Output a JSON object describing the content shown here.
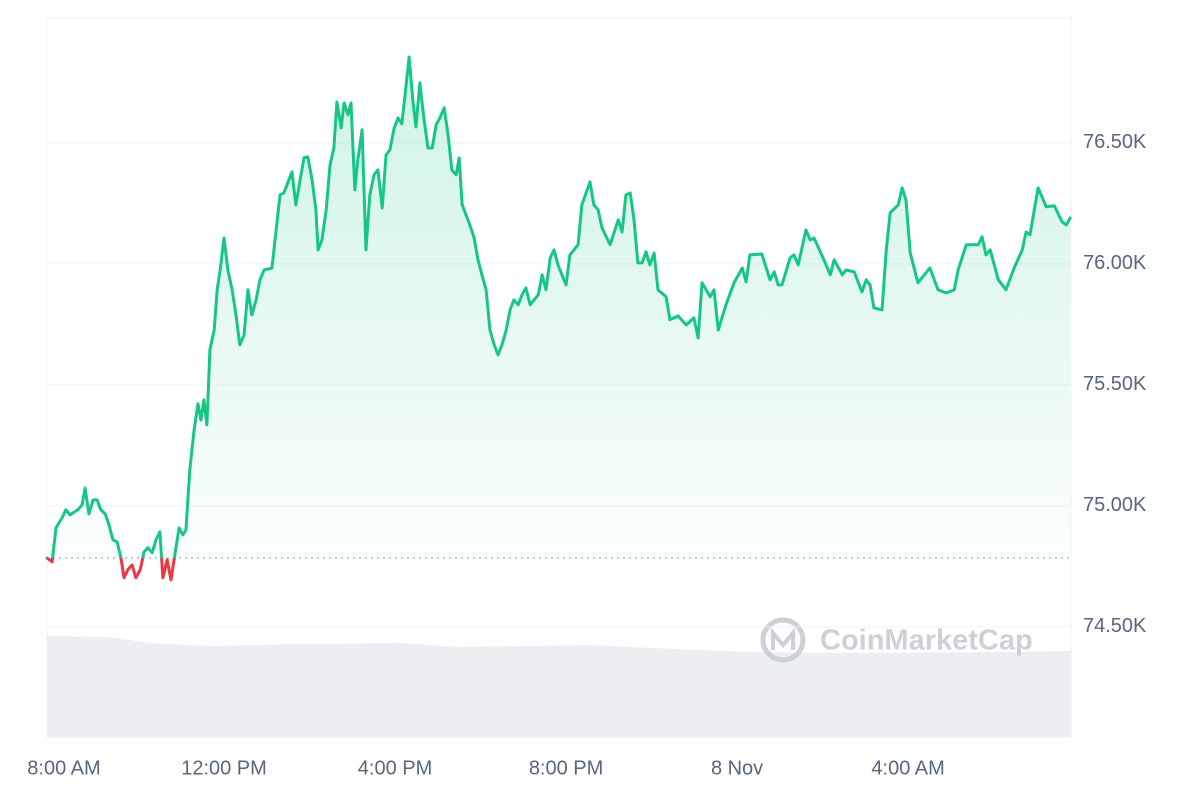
{
  "chart_data": {
    "type": "line",
    "watermark": "CoinMarketCap",
    "up_color": "#16c784",
    "down_color": "#ea3943",
    "baseline": 74785,
    "grid": true,
    "xlim": [
      -0.14,
      23.81
    ],
    "xticks": [
      {
        "value": 0,
        "label": "8:00 AM"
      },
      {
        "value": 4,
        "label": "12:00 PM"
      },
      {
        "value": 8,
        "label": "4:00 PM"
      },
      {
        "value": 12,
        "label": "8:00 PM"
      },
      {
        "value": 16,
        "label": "8 Nov"
      },
      {
        "value": 20,
        "label": "4:00 AM"
      }
    ],
    "ylim": [
      74045,
      77016
    ],
    "yticks": [
      {
        "value": 74500,
        "label": "74.50K"
      },
      {
        "value": 75000,
        "label": "75.00K"
      },
      {
        "value": 75500,
        "label": "75.50K"
      },
      {
        "value": 76000,
        "label": "76.00K"
      },
      {
        "value": 76500,
        "label": "76.50K"
      }
    ],
    "x": [
      -0.14,
      -0.02,
      0.07,
      0.21,
      0.3,
      0.4,
      0.58,
      0.68,
      0.75,
      0.84,
      0.94,
      1.03,
      1.12,
      1.22,
      1.31,
      1.4,
      1.5,
      1.59,
      1.66,
      1.75,
      1.85,
      1.94,
      2.04,
      2.13,
      2.22,
      2.32,
      2.41,
      2.5,
      2.57,
      2.67,
      2.76,
      2.85,
      2.95,
      3.04,
      3.11,
      3.2,
      3.3,
      3.39,
      3.46,
      3.53,
      3.6,
      3.67,
      3.77,
      3.84,
      3.91,
      4.0,
      4.09,
      4.19,
      4.28,
      4.37,
      4.47,
      4.56,
      4.65,
      4.75,
      4.84,
      4.94,
      5.12,
      5.22,
      5.31,
      5.4,
      5.59,
      5.68,
      5.78,
      5.87,
      5.96,
      6.06,
      6.15,
      6.2,
      6.29,
      6.39,
      6.48,
      6.57,
      6.64,
      6.74,
      6.81,
      6.9,
      6.97,
      7.06,
      7.13,
      7.23,
      7.32,
      7.41,
      7.51,
      7.6,
      7.7,
      7.79,
      7.88,
      7.98,
      8.07,
      8.16,
      8.26,
      8.33,
      8.42,
      8.49,
      8.58,
      8.68,
      8.77,
      8.87,
      8.96,
      9.05,
      9.15,
      9.24,
      9.33,
      9.43,
      9.5,
      9.57,
      9.75,
      9.85,
      9.94,
      10.04,
      10.13,
      10.22,
      10.32,
      10.41,
      10.5,
      10.6,
      10.69,
      10.78,
      10.88,
      10.97,
      11.06,
      11.16,
      11.35,
      11.44,
      11.53,
      11.63,
      11.72,
      11.81,
      12.0,
      12.09,
      12.28,
      12.37,
      12.56,
      12.65,
      12.75,
      12.84,
      13.03,
      13.22,
      13.31,
      13.4,
      13.5,
      13.59,
      13.68,
      13.78,
      13.87,
      13.96,
      14.06,
      14.15,
      14.34,
      14.43,
      14.62,
      14.81,
      14.99,
      15.09,
      15.18,
      15.37,
      15.46,
      15.56,
      15.74,
      15.93,
      16.12,
      16.21,
      16.3,
      16.58,
      16.77,
      16.87,
      16.96,
      17.05,
      17.24,
      17.33,
      17.43,
      17.61,
      17.71,
      17.8,
      17.99,
      18.18,
      18.27,
      18.46,
      18.55,
      18.74,
      18.92,
      19.02,
      19.11,
      19.2,
      19.39,
      19.49,
      19.58,
      19.77,
      19.86,
      19.95,
      20.05,
      20.23,
      20.51,
      20.7,
      20.89,
      21.08,
      21.17,
      21.36,
      21.64,
      21.73,
      21.82,
      21.92,
      22.11,
      22.29,
      22.48,
      22.67,
      22.76,
      22.85,
      23.04,
      23.23,
      23.42,
      23.6,
      23.7,
      23.79
    ],
    "values": [
      74785,
      74769,
      74909,
      74950,
      74984,
      74963,
      74984,
      75004,
      75074,
      74967,
      75025,
      75025,
      74984,
      74967,
      74922,
      74860,
      74851,
      74785,
      74703,
      74736,
      74756,
      74703,
      74736,
      74810,
      74827,
      74806,
      74860,
      74893,
      74703,
      74777,
      74694,
      74798,
      74909,
      74880,
      74901,
      75149,
      75314,
      75422,
      75355,
      75438,
      75335,
      75645,
      75727,
      75893,
      75975,
      76107,
      75975,
      75893,
      75789,
      75665,
      75707,
      75893,
      75789,
      75851,
      75934,
      75975,
      75983,
      76140,
      76285,
      76293,
      76380,
      76244,
      76347,
      76438,
      76442,
      76347,
      76223,
      76058,
      76099,
      76223,
      76409,
      76479,
      76669,
      76562,
      76665,
      76616,
      76665,
      76306,
      76430,
      76554,
      76058,
      76285,
      76368,
      76388,
      76231,
      76450,
      76471,
      76562,
      76603,
      76579,
      76740,
      76855,
      76669,
      76566,
      76748,
      76595,
      76479,
      76479,
      76574,
      76603,
      76645,
      76533,
      76388,
      76368,
      76438,
      76244,
      76161,
      76107,
      76017,
      75950,
      75893,
      75727,
      75665,
      75624,
      75665,
      75727,
      75810,
      75851,
      75831,
      75872,
      75901,
      75831,
      75872,
      75955,
      75893,
      76025,
      76058,
      75996,
      75913,
      76037,
      76079,
      76244,
      76339,
      76244,
      76223,
      76149,
      76079,
      76182,
      76132,
      76285,
      76293,
      76182,
      76004,
      76004,
      76050,
      75996,
      76045,
      75893,
      75864,
      75769,
      75785,
      75748,
      75777,
      75694,
      75922,
      75864,
      75893,
      75727,
      75831,
      75922,
      75983,
      75926,
      76037,
      76041,
      75934,
      75967,
      75913,
      75913,
      76025,
      76037,
      75996,
      76140,
      76099,
      76107,
      76033,
      75955,
      76017,
      75955,
      75975,
      75967,
      75884,
      75934,
      75913,
      75818,
      75810,
      76058,
      76211,
      76244,
      76314,
      76264,
      76045,
      75922,
      75983,
      75893,
      75880,
      75893,
      75975,
      76079,
      76079,
      76112,
      76037,
      76058,
      75934,
      75893,
      75983,
      76058,
      76132,
      76120,
      76314,
      76236,
      76240,
      76174,
      76161,
      76190
    ]
  }
}
